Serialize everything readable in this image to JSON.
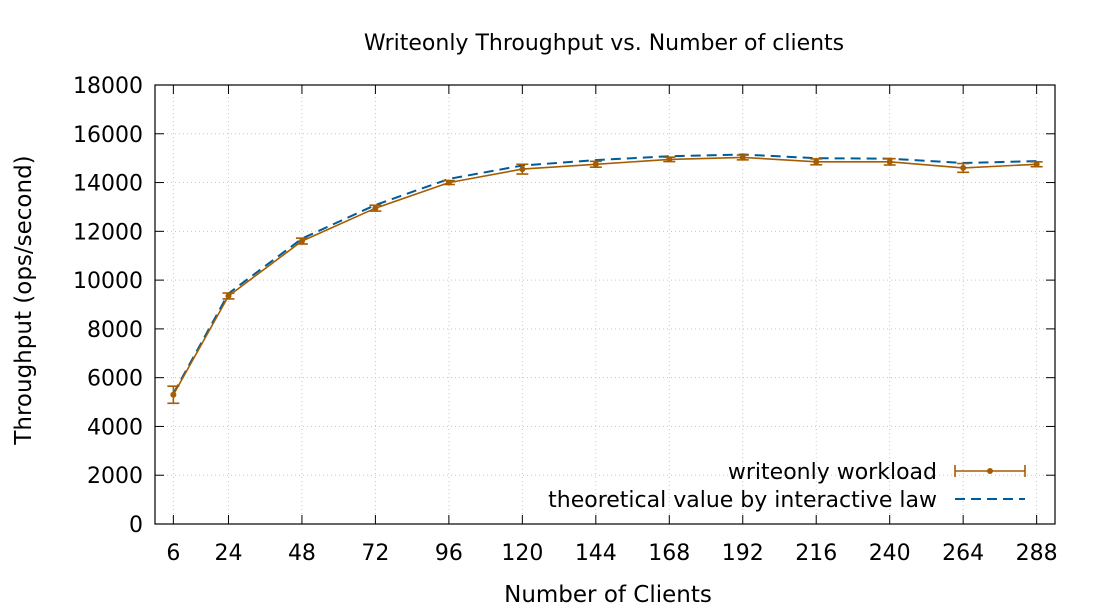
{
  "chart_data": {
    "type": "line",
    "title": "Writeonly Throughput vs. Number of clients",
    "xlabel": "Number of Clients",
    "ylabel": "Throughput (ops/second)",
    "x": [
      6,
      24,
      48,
      72,
      96,
      120,
      144,
      168,
      192,
      216,
      240,
      264,
      288
    ],
    "xticks": [
      "6",
      "24",
      "48",
      "72",
      "96",
      "120",
      "144",
      "168",
      "192",
      "216",
      "240",
      "264",
      "288"
    ],
    "yticks": [
      "0",
      "2000",
      "4000",
      "6000",
      "8000",
      "10000",
      "12000",
      "14000",
      "16000",
      "18000"
    ],
    "xlim": [
      0,
      294
    ],
    "ylim": [
      0,
      18000
    ],
    "grid": true,
    "legend_position": "bottom-right",
    "series": [
      {
        "name": "writeonly workload",
        "color": "#a65c00",
        "style": "solid-with-points-and-errorbars",
        "values": [
          5300,
          9350,
          11600,
          12950,
          14000,
          14550,
          14750,
          14950,
          15030,
          14850,
          14850,
          14600,
          14750
        ],
        "error": [
          350,
          120,
          120,
          120,
          80,
          200,
          120,
          90,
          100,
          120,
          130,
          180,
          100
        ]
      },
      {
        "name": "theoretical value by interactive law",
        "color": "#005b9a",
        "style": "dashed",
        "values": [
          5350,
          9450,
          11700,
          13080,
          14150,
          14700,
          14920,
          15080,
          15150,
          15000,
          14980,
          14800,
          14880
        ]
      }
    ]
  }
}
